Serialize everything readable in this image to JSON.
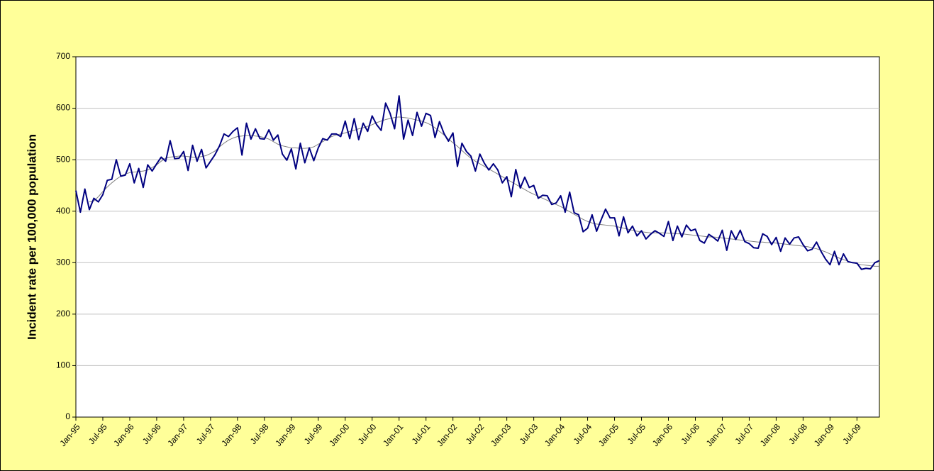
{
  "chart_data": {
    "type": "line",
    "ylabel": "Incident rate per 100,000 population",
    "categories": [
      "Jan-95",
      null,
      null,
      null,
      null,
      null,
      "Jul-95",
      null,
      null,
      null,
      null,
      null,
      "Jan-96",
      null,
      null,
      null,
      null,
      null,
      "Jul-96",
      null,
      null,
      null,
      null,
      null,
      "Jan-97",
      null,
      null,
      null,
      null,
      null,
      "Jul-97",
      null,
      null,
      null,
      null,
      null,
      "Jan-98",
      null,
      null,
      null,
      null,
      null,
      "Jul-98",
      null,
      null,
      null,
      null,
      null,
      "Jan-99",
      null,
      null,
      null,
      null,
      null,
      "Jul-99",
      null,
      null,
      null,
      null,
      null,
      "Jan-00",
      null,
      null,
      null,
      null,
      null,
      "Jul-00",
      null,
      null,
      null,
      null,
      null,
      "Jan-01",
      null,
      null,
      null,
      null,
      null,
      "Jul-01",
      null,
      null,
      null,
      null,
      null,
      "Jan-02",
      null,
      null,
      null,
      null,
      null,
      "Jul-02",
      null,
      null,
      null,
      null,
      null,
      "Jan-03",
      null,
      null,
      null,
      null,
      null,
      "Jul-03",
      null,
      null,
      null,
      null,
      null,
      "Jan-04",
      null,
      null,
      null,
      null,
      null,
      "Jul-04",
      null,
      null,
      null,
      null,
      null,
      "Jan-05",
      null,
      null,
      null,
      null,
      null,
      "Jul-05",
      null,
      null,
      null,
      null,
      null,
      "Jan-06",
      null,
      null,
      null,
      null,
      null,
      "Jul-06",
      null,
      null,
      null,
      null,
      null,
      "Jan-07",
      null,
      null,
      null,
      null,
      null,
      "Jul-07",
      null,
      null,
      null,
      null,
      null,
      "Jan-08",
      null,
      null,
      null,
      null,
      null,
      "Jul-08",
      null,
      null,
      null,
      null,
      null,
      "Jan-09",
      null,
      null,
      null,
      null,
      null,
      "Jul-09",
      null,
      null,
      null,
      null,
      null
    ],
    "series": [
      {
        "color": "#000080",
        "width": 2,
        "values": [
          440,
          398,
          443,
          403,
          425,
          418,
          432,
          460,
          462,
          500,
          468,
          470,
          492,
          455,
          483,
          446,
          490,
          478,
          492,
          505,
          497,
          537,
          502,
          503,
          516,
          479,
          528,
          497,
          520,
          484,
          497,
          510,
          527,
          550,
          545,
          555,
          562,
          509,
          571,
          540,
          560,
          541,
          540,
          558,
          538,
          548,
          511,
          499,
          521,
          482,
          532,
          494,
          523,
          498,
          523,
          541,
          538,
          550,
          550,
          545,
          575,
          541,
          580,
          539,
          571,
          555,
          585,
          568,
          557,
          610,
          590,
          560,
          624,
          540,
          577,
          547,
          592,
          565,
          590,
          586,
          543,
          574,
          551,
          536,
          552,
          487,
          532,
          516,
          507,
          478,
          511,
          493,
          480,
          492,
          480,
          455,
          467,
          428,
          481,
          445,
          466,
          446,
          450,
          425,
          431,
          430,
          413,
          416,
          430,
          398,
          437,
          397,
          393,
          360,
          367,
          393,
          361,
          383,
          404,
          387,
          387,
          352,
          389,
          358,
          371,
          352,
          362,
          346,
          355,
          362,
          357,
          351,
          380,
          343,
          371,
          350,
          373,
          362,
          365,
          343,
          338,
          355,
          349,
          342,
          363,
          324,
          362,
          345,
          363,
          341,
          337,
          329,
          328,
          356,
          351,
          335,
          349,
          322,
          348,
          336,
          348,
          350,
          335,
          323,
          326,
          340,
          322,
          307,
          296,
          322,
          296,
          317,
          302,
          300,
          299,
          287,
          289,
          288,
          300,
          304
        ]
      },
      {
        "color": "#808080",
        "width": 1,
        "values": [
          null,
          null,
          null,
          418,
          420,
          428,
          438,
          447,
          455,
          462,
          468,
          472,
          475,
          476,
          477,
          478,
          480,
          485,
          490,
          497,
          503,
          505,
          506,
          507,
          507,
          506,
          505,
          505,
          506,
          508,
          512,
          517,
          525,
          532,
          538,
          542,
          545,
          546,
          547,
          547,
          546,
          545,
          543,
          540,
          535,
          530,
          527,
          525,
          523,
          523,
          522,
          522,
          523,
          525,
          530,
          535,
          540,
          545,
          548,
          550,
          552,
          555,
          557,
          560,
          562,
          565,
          568,
          572,
          575,
          578,
          580,
          582,
          583,
          582,
          581,
          579,
          577,
          575,
          572,
          568,
          562,
          555,
          548,
          540,
          533,
          526,
          518,
          510,
          503,
          497,
          492,
          487,
          482,
          477,
          472,
          467,
          462,
          457,
          452,
          447,
          442,
          437,
          433,
          429,
          425,
          421,
          417,
          413,
          409,
          404,
          399,
          394,
          389,
          384,
          380,
          377,
          375,
          374,
          373,
          372,
          371,
          369,
          367,
          365,
          363,
          361,
          360,
          359,
          358,
          358,
          358,
          358,
          357,
          357,
          356,
          356,
          355,
          354,
          353,
          352,
          351,
          350,
          350,
          349,
          348,
          347,
          346,
          345,
          344,
          343,
          342,
          341,
          340,
          340,
          339,
          339,
          338,
          337,
          336,
          335,
          334,
          333,
          332,
          331,
          329,
          327,
          324,
          321,
          317,
          313,
          309,
          306,
          303,
          300,
          298,
          296,
          295,
          294,
          293,
          293
        ]
      }
    ],
    "ylim": [
      0,
      700
    ],
    "yticks": [
      0,
      100,
      200,
      300,
      400,
      500,
      600,
      700
    ],
    "grid": true
  }
}
